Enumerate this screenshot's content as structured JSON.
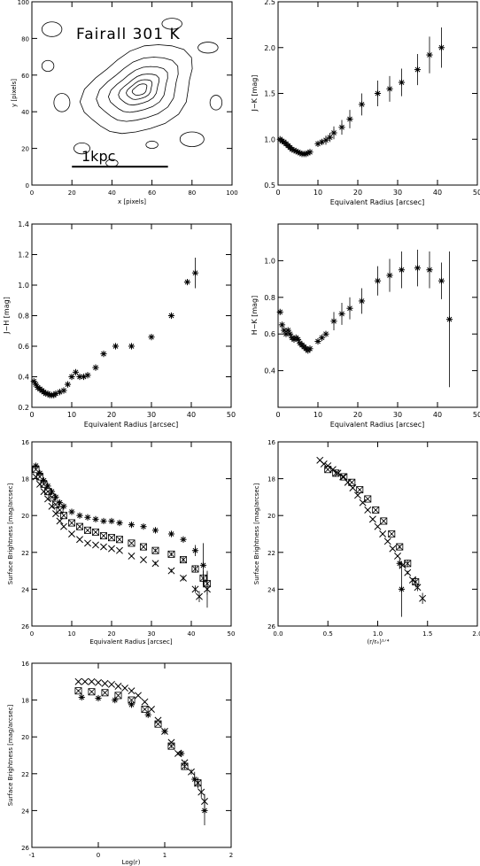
{
  "chart_data": [
    {
      "id": "contour",
      "type": "contour",
      "title": "Fairall 301 K",
      "xlabel": "x [pixels]",
      "ylabel": "y [pixels]",
      "xlim": [
        0,
        100
      ],
      "ylim": [
        0,
        100
      ],
      "xticks": [
        0,
        20,
        40,
        60,
        80,
        100
      ],
      "yticks": [
        0,
        20,
        40,
        60,
        80,
        100
      ],
      "annotation": "1kpc",
      "scalebar": {
        "x1": 20,
        "x2": 68,
        "y": 10
      },
      "center": [
        54,
        52
      ],
      "contours": [
        {
          "rx": 4,
          "ry": 2.6
        },
        {
          "rx": 7,
          "ry": 4.5
        },
        {
          "rx": 11,
          "ry": 7
        },
        {
          "rx": 16,
          "ry": 10.5
        },
        {
          "rx": 22,
          "ry": 15
        },
        {
          "rx": 30,
          "ry": 21
        }
      ]
    },
    {
      "id": "jk",
      "type": "scatter",
      "xlabel": "Equivalent Radius [arcsec]",
      "ylabel": "J−K [mag]",
      "xlim": [
        0,
        50
      ],
      "ylim": [
        0.5,
        2.5
      ],
      "xticks": [
        0,
        10,
        20,
        30,
        40,
        50
      ],
      "yticks": [
        0.5,
        1.0,
        1.5,
        2.0,
        2.5
      ],
      "x": [
        0.5,
        1,
        1.5,
        2,
        2.5,
        3,
        3.5,
        4,
        4.5,
        5,
        5.5,
        6,
        6.5,
        7,
        7.5,
        8,
        10,
        11,
        12,
        13,
        14,
        16,
        18,
        21,
        25,
        28,
        31,
        35,
        38,
        41
      ],
      "y": [
        1.0,
        0.98,
        0.97,
        0.95,
        0.93,
        0.91,
        0.89,
        0.88,
        0.87,
        0.86,
        0.85,
        0.84,
        0.84,
        0.84,
        0.85,
        0.86,
        0.95,
        0.97,
        0.99,
        1.02,
        1.07,
        1.13,
        1.22,
        1.38,
        1.5,
        1.55,
        1.62,
        1.76,
        1.92,
        2.0
      ],
      "err": [
        0.02,
        0.02,
        0.02,
        0.02,
        0.02,
        0.02,
        0.02,
        0.02,
        0.02,
        0.02,
        0.02,
        0.02,
        0.02,
        0.02,
        0.03,
        0.03,
        0.04,
        0.04,
        0.05,
        0.05,
        0.07,
        0.08,
        0.1,
        0.12,
        0.14,
        0.14,
        0.15,
        0.17,
        0.2,
        0.22
      ]
    },
    {
      "id": "jh",
      "type": "scatter",
      "xlabel": "Equivalent Radius [arcsec]",
      "ylabel": "J−H [mag]",
      "xlim": [
        0,
        50
      ],
      "ylim": [
        0.2,
        1.4
      ],
      "xticks": [
        0,
        10,
        20,
        30,
        40,
        50
      ],
      "yticks": [
        0.2,
        0.4,
        0.6,
        0.8,
        1.0,
        1.2,
        1.4
      ],
      "x": [
        0.5,
        1,
        1.5,
        2,
        2.5,
        3,
        3.5,
        4,
        4.5,
        5,
        5.5,
        6,
        7,
        8,
        9,
        10,
        11,
        12,
        13,
        14,
        16,
        18,
        21,
        25,
        30,
        35,
        39,
        41
      ],
      "y": [
        0.37,
        0.35,
        0.33,
        0.32,
        0.31,
        0.3,
        0.29,
        0.29,
        0.28,
        0.28,
        0.28,
        0.29,
        0.3,
        0.31,
        0.35,
        0.4,
        0.43,
        0.4,
        0.4,
        0.41,
        0.46,
        0.55,
        0.6,
        0.6,
        0.66,
        0.8,
        1.02,
        1.08
      ],
      "err": [
        0.01,
        0.01,
        0.01,
        0.01,
        0.01,
        0.01,
        0.01,
        0.01,
        0.01,
        0.01,
        0.01,
        0.01,
        0.01,
        0.01,
        0.01,
        0.01,
        0.01,
        0.01,
        0.01,
        0.01,
        0.01,
        0.01,
        0.01,
        0.01,
        0.01,
        0.01,
        0.04,
        0.1
      ]
    },
    {
      "id": "hk",
      "type": "scatter",
      "xlabel": "Equivalent Radius [arcsec]",
      "ylabel": "H−K [mag]",
      "xlim": [
        0,
        50
      ],
      "ylim": [
        0.2,
        1.2
      ],
      "xticks": [
        0,
        10,
        20,
        30,
        40,
        50
      ],
      "yticks": [
        0.4,
        0.6,
        0.8,
        1.0
      ],
      "x": [
        0.5,
        1,
        1.5,
        2,
        2.5,
        3,
        3.5,
        4,
        4.5,
        5,
        5.5,
        6,
        6.5,
        7,
        7.5,
        8,
        10,
        11,
        12,
        14,
        16,
        18,
        21,
        25,
        28,
        31,
        35,
        38,
        41,
        43
      ],
      "y": [
        0.72,
        0.65,
        0.62,
        0.6,
        0.62,
        0.6,
        0.58,
        0.57,
        0.58,
        0.57,
        0.55,
        0.54,
        0.53,
        0.52,
        0.51,
        0.52,
        0.56,
        0.58,
        0.6,
        0.67,
        0.71,
        0.74,
        0.78,
        0.89,
        0.92,
        0.95,
        0.96,
        0.95,
        0.89,
        0.68
      ],
      "err": [
        0.02,
        0.02,
        0.02,
        0.02,
        0.02,
        0.02,
        0.02,
        0.02,
        0.02,
        0.02,
        0.02,
        0.02,
        0.02,
        0.02,
        0.02,
        0.02,
        0.03,
        0.03,
        0.04,
        0.05,
        0.06,
        0.06,
        0.07,
        0.08,
        0.09,
        0.1,
        0.1,
        0.1,
        0.1,
        0.37
      ]
    },
    {
      "id": "sb_r",
      "type": "scatter",
      "xlabel": "Equivalent Radius [arcsec]",
      "ylabel": "Surface Brightness [mag/arcsec]",
      "xlim": [
        0,
        50
      ],
      "ylim": [
        26,
        16
      ],
      "xticks": [
        0,
        10,
        20,
        30,
        40,
        50
      ],
      "yticks": [
        16,
        18,
        20,
        22,
        24,
        26
      ],
      "series": [
        {
          "marker": "asterisk",
          "x": [
            1,
            2,
            3,
            4,
            5,
            6,
            7,
            8,
            10,
            12,
            14,
            16,
            18,
            20,
            22,
            25,
            28,
            31,
            35,
            38,
            41,
            43
          ],
          "y": [
            17.3,
            17.7,
            18.1,
            18.4,
            18.7,
            19.0,
            19.3,
            19.5,
            19.8,
            20.0,
            20.1,
            20.2,
            20.3,
            20.3,
            20.4,
            20.5,
            20.6,
            20.8,
            21.0,
            21.3,
            21.9,
            22.7
          ],
          "err": [
            0.05,
            0.05,
            0.05,
            0.05,
            0.05,
            0.05,
            0.05,
            0.05,
            0.05,
            0.05,
            0.05,
            0.05,
            0.05,
            0.05,
            0.05,
            0.05,
            0.05,
            0.1,
            0.1,
            0.15,
            0.3,
            1.2
          ]
        },
        {
          "marker": "boxcross",
          "x": [
            1,
            2,
            3,
            4,
            5,
            6,
            7,
            8,
            10,
            12,
            14,
            16,
            18,
            20,
            22,
            25,
            28,
            31,
            35,
            38,
            41,
            43,
            44
          ],
          "y": [
            17.5,
            17.9,
            18.3,
            18.7,
            19.0,
            19.4,
            19.7,
            20.0,
            20.4,
            20.6,
            20.8,
            20.9,
            21.1,
            21.2,
            21.3,
            21.5,
            21.7,
            21.9,
            22.1,
            22.4,
            22.9,
            23.4,
            23.7
          ],
          "err": [
            0.05,
            0.05,
            0.05,
            0.05,
            0.05,
            0.05,
            0.05,
            0.05,
            0.05,
            0.05,
            0.05,
            0.05,
            0.05,
            0.05,
            0.05,
            0.05,
            0.05,
            0.1,
            0.1,
            0.15,
            0.2,
            0.4,
            0.6
          ]
        },
        {
          "marker": "x",
          "x": [
            1,
            2,
            3,
            4,
            5,
            6,
            7,
            8,
            10,
            12,
            14,
            16,
            18,
            20,
            22,
            25,
            28,
            31,
            35,
            38,
            41,
            42,
            44
          ],
          "y": [
            17.9,
            18.3,
            18.7,
            19.1,
            19.5,
            19.9,
            20.3,
            20.6,
            21.0,
            21.3,
            21.5,
            21.6,
            21.7,
            21.8,
            21.9,
            22.2,
            22.4,
            22.6,
            23.0,
            23.4,
            24.0,
            24.4,
            24.0
          ],
          "err": [
            0.05,
            0.05,
            0.05,
            0.05,
            0.05,
            0.05,
            0.05,
            0.05,
            0.05,
            0.05,
            0.05,
            0.05,
            0.05,
            0.05,
            0.05,
            0.05,
            0.05,
            0.1,
            0.1,
            0.15,
            0.2,
            0.3,
            1.0
          ]
        }
      ]
    },
    {
      "id": "sb_r14",
      "type": "scatter",
      "xlabel": "(r/rₑ)¹ᐟ⁴",
      "ylabel": "Surface Brightness [mag/arcsec]",
      "xlim": [
        0,
        2
      ],
      "ylim": [
        26,
        16
      ],
      "xticks": [
        0.0,
        0.5,
        1.0,
        1.5,
        2.0
      ],
      "yticks": [
        16,
        18,
        20,
        22,
        24,
        26
      ],
      "series": [
        {
          "marker": "x",
          "x": [
            0.42,
            0.46,
            0.5,
            0.55,
            0.6,
            0.65,
            0.7,
            0.75,
            0.8,
            0.85,
            0.9,
            0.95,
            1.0,
            1.05,
            1.1,
            1.15,
            1.2,
            1.25,
            1.3,
            1.35,
            1.4,
            1.45
          ],
          "y": [
            17.0,
            17.2,
            17.3,
            17.5,
            17.7,
            17.9,
            18.2,
            18.5,
            18.9,
            19.3,
            19.7,
            20.2,
            20.6,
            21.0,
            21.4,
            21.8,
            22.2,
            22.7,
            23.1,
            23.5,
            23.9,
            24.5
          ],
          "err": [
            0.05,
            0.05,
            0.05,
            0.05,
            0.05,
            0.05,
            0.05,
            0.05,
            0.05,
            0.05,
            0.05,
            0.05,
            0.05,
            0.05,
            0.05,
            0.05,
            0.05,
            0.05,
            0.1,
            0.1,
            0.2,
            0.3
          ]
        },
        {
          "marker": "boxcross",
          "x": [
            0.5,
            0.58,
            0.66,
            0.74,
            0.82,
            0.9,
            0.98,
            1.06,
            1.14,
            1.22,
            1.3,
            1.38
          ],
          "y": [
            17.5,
            17.7,
            17.9,
            18.2,
            18.6,
            19.1,
            19.7,
            20.3,
            21.0,
            21.7,
            22.6,
            23.6
          ],
          "err": [
            0.05,
            0.05,
            0.05,
            0.05,
            0.05,
            0.05,
            0.05,
            0.05,
            0.05,
            0.1,
            0.2,
            0.3
          ]
        },
        {
          "marker": "asterisk",
          "x": [
            1.22,
            1.24
          ],
          "y": [
            22.6,
            24.0
          ],
          "err": [
            0.3,
            1.5
          ]
        }
      ]
    },
    {
      "id": "sb_logr",
      "type": "scatter",
      "xlabel": "Log(r)",
      "ylabel": "Surface Brightness [mag/arcsec]",
      "xlim": [
        -1,
        2
      ],
      "ylim": [
        26,
        16
      ],
      "xticks": [
        -1,
        0,
        1,
        2
      ],
      "yticks": [
        16,
        18,
        20,
        22,
        24,
        26
      ],
      "series": [
        {
          "marker": "x",
          "x": [
            -0.3,
            -0.2,
            -0.1,
            0.0,
            0.1,
            0.2,
            0.3,
            0.4,
            0.5,
            0.6,
            0.7,
            0.8,
            0.9,
            1.0,
            1.1,
            1.2,
            1.3,
            1.4,
            1.5,
            1.55,
            1.6
          ],
          "y": [
            17.0,
            17.0,
            17.0,
            17.05,
            17.1,
            17.15,
            17.25,
            17.35,
            17.5,
            17.75,
            18.1,
            18.5,
            19.1,
            19.7,
            20.3,
            20.9,
            21.4,
            21.9,
            22.5,
            23.0,
            23.5
          ],
          "err": [
            0.05,
            0.05,
            0.05,
            0.05,
            0.05,
            0.05,
            0.05,
            0.05,
            0.05,
            0.05,
            0.05,
            0.05,
            0.05,
            0.05,
            0.05,
            0.1,
            0.1,
            0.15,
            0.2,
            0.3,
            0.4
          ]
        },
        {
          "marker": "boxcross",
          "x": [
            -0.3,
            -0.1,
            0.1,
            0.3,
            0.5,
            0.7,
            0.9,
            1.1,
            1.3,
            1.5
          ],
          "y": [
            17.5,
            17.55,
            17.6,
            17.75,
            18.0,
            18.5,
            19.3,
            20.5,
            21.6,
            22.5
          ],
          "err": [
            0.05,
            0.05,
            0.05,
            0.05,
            0.05,
            0.05,
            0.05,
            0.1,
            0.15,
            0.3
          ]
        },
        {
          "marker": "asterisk",
          "x": [
            -0.25,
            0.0,
            0.25,
            0.5,
            0.75,
            1.0,
            1.25,
            1.45,
            1.6
          ],
          "y": [
            17.85,
            17.9,
            18.0,
            18.25,
            18.8,
            19.7,
            20.9,
            22.3,
            24.0
          ],
          "err": [
            0.05,
            0.05,
            0.05,
            0.05,
            0.05,
            0.1,
            0.2,
            0.4,
            0.8
          ]
        }
      ]
    }
  ]
}
